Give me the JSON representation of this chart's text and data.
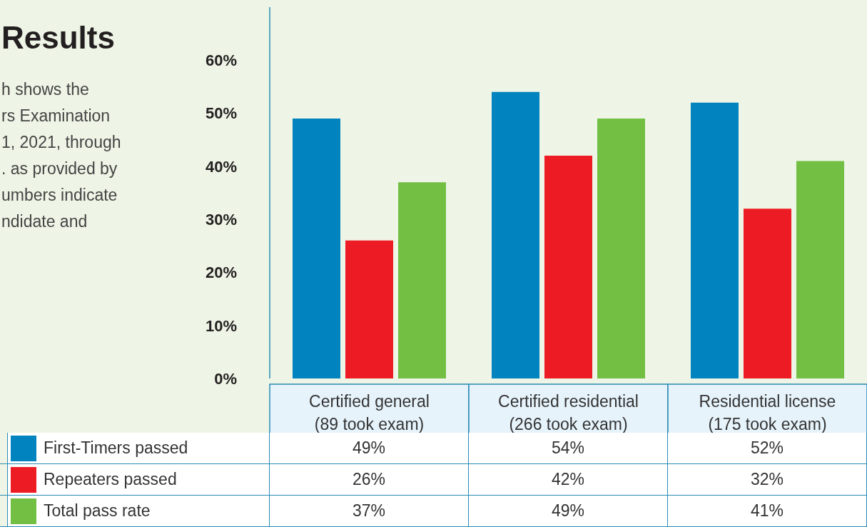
{
  "chart_data": {
    "type": "bar",
    "title": "Results",
    "annotations": [
      "h shows the",
      "rs Examination",
      "1, 2021, through",
      ". as provided by",
      "umbers indicate",
      "ndidate and"
    ],
    "categories": [
      "Certified general\n(89 took exam)",
      "Certified residential\n(266 took exam)",
      "Residential license\n(175 took exam)"
    ],
    "series": [
      {
        "name": "First-Timers passed",
        "color": "#0083be",
        "values": [
          49,
          54,
          52
        ],
        "value_labels": [
          "49%",
          "54%",
          "52%"
        ]
      },
      {
        "name": "Repeaters passed",
        "color": "#ed1c24",
        "values": [
          26,
          42,
          32
        ],
        "value_labels": [
          "26%",
          "42%",
          "32%"
        ]
      },
      {
        "name": "Total pass rate",
        "color": "#72bf44",
        "values": [
          37,
          49,
          41
        ],
        "value_labels": [
          "37%",
          "49%",
          "41%"
        ]
      }
    ],
    "ylim": [
      0,
      70
    ],
    "yticks": [
      {
        "value": 0,
        "label": "0%"
      },
      {
        "value": 10,
        "label": "10%"
      },
      {
        "value": 20,
        "label": "20%"
      },
      {
        "value": 30,
        "label": "30%"
      },
      {
        "value": 40,
        "label": "40%"
      },
      {
        "value": 50,
        "label": "50%"
      },
      {
        "value": 60,
        "label": "60%"
      }
    ],
    "grid": false,
    "legend": "bottom"
  }
}
